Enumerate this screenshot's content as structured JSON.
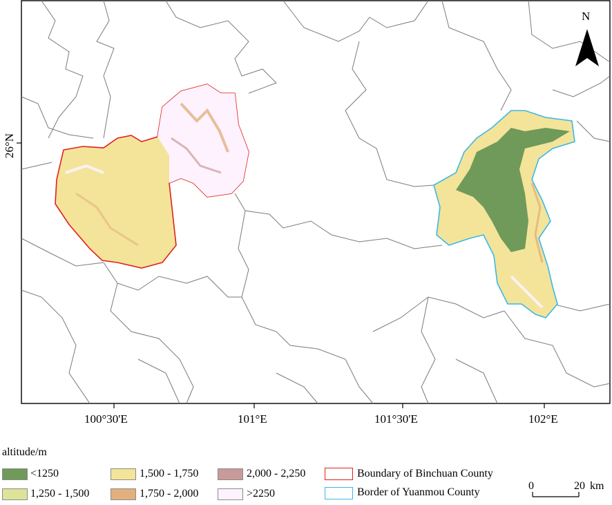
{
  "map": {
    "north_label": "N",
    "lat_label": "26°N",
    "lon_labels": [
      "100°30'E",
      "101°E",
      "101°30'E",
      "102°E"
    ]
  },
  "regions": {
    "binchuan": {
      "border_color": "#e0201c"
    },
    "yuanmou": {
      "border_color": "#3ab7e6"
    }
  },
  "legend": {
    "title": "altitude/m",
    "classes": [
      {
        "label": "<1250",
        "color": "#6f9a5a"
      },
      {
        "label": "1,250 - 1,500",
        "color": "#dfe39a"
      },
      {
        "label": "1,500 - 1,750",
        "color": "#f3e49a"
      },
      {
        "label": "1,750 - 2,000",
        "color": "#e2b07f"
      },
      {
        "label": "2,000 - 2,250",
        "color": "#c99a9a"
      },
      {
        "label": ">2250",
        "color": "#fdf2fd"
      }
    ],
    "binchuan_label": "Boundary of Binchuan County",
    "yuanmou_label": "Border of Yuanmou County"
  },
  "scale_bar": {
    "start": "0",
    "end": "20",
    "unit": "km"
  }
}
